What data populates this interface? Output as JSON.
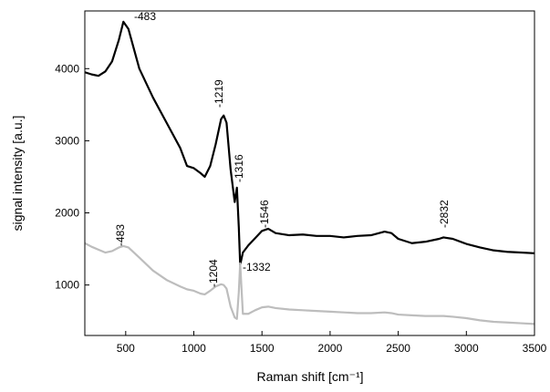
{
  "chart_data": {
    "type": "line",
    "x_label": "Raman shift [cm⁻¹]",
    "y_label": "signal intensity [a.u.]",
    "x": [
      200,
      250,
      300,
      350,
      400,
      450,
      483,
      520,
      600,
      700,
      800,
      900,
      950,
      1000,
      1050,
      1080,
      1120,
      1160,
      1200,
      1219,
      1240,
      1270,
      1300,
      1316,
      1330,
      1340,
      1360,
      1400,
      1450,
      1500,
      1546,
      1600,
      1700,
      1800,
      1900,
      2000,
      2100,
      2200,
      2300,
      2400,
      2450,
      2500,
      2600,
      2700,
      2800,
      2832,
      2900,
      3000,
      3100,
      3200,
      3300,
      3400,
      3500
    ],
    "series": [
      {
        "color": "#000000",
        "values": [
          3950,
          3920,
          3900,
          3960,
          4100,
          4400,
          4650,
          4550,
          4000,
          3600,
          3250,
          2900,
          2650,
          2620,
          2550,
          2500,
          2650,
          2950,
          3300,
          3350,
          3250,
          2600,
          2150,
          2350,
          1800,
          1280,
          1450,
          1550,
          1650,
          1750,
          1780,
          1720,
          1690,
          1700,
          1680,
          1680,
          1660,
          1680,
          1690,
          1740,
          1720,
          1640,
          1580,
          1600,
          1640,
          1660,
          1640,
          1570,
          1520,
          1480,
          1460,
          1450,
          1440
        ]
      },
      {
        "color": "#bdbdbd",
        "values": [
          1580,
          1530,
          1490,
          1450,
          1470,
          1520,
          1540,
          1520,
          1380,
          1200,
          1070,
          980,
          940,
          920,
          880,
          870,
          920,
          980,
          1010,
          1000,
          950,
          700,
          550,
          530,
          900,
          1300,
          600,
          600,
          650,
          690,
          700,
          680,
          660,
          650,
          640,
          630,
          620,
          610,
          610,
          620,
          610,
          590,
          580,
          570,
          570,
          570,
          560,
          540,
          510,
          490,
          480,
          470,
          460
        ]
      }
    ],
    "annotations": [
      "-483",
      "-1219",
      "-1316",
      "-1546",
      "-2832",
      "-1332",
      "-483",
      "-1204"
    ],
    "xlim": [
      200,
      3500
    ],
    "xticks": [
      500,
      1000,
      1500,
      2000,
      2500,
      3000,
      3500
    ],
    "ylim": [
      300,
      4800
    ],
    "yticks": [
      1000,
      2000,
      3000,
      4000
    ]
  }
}
